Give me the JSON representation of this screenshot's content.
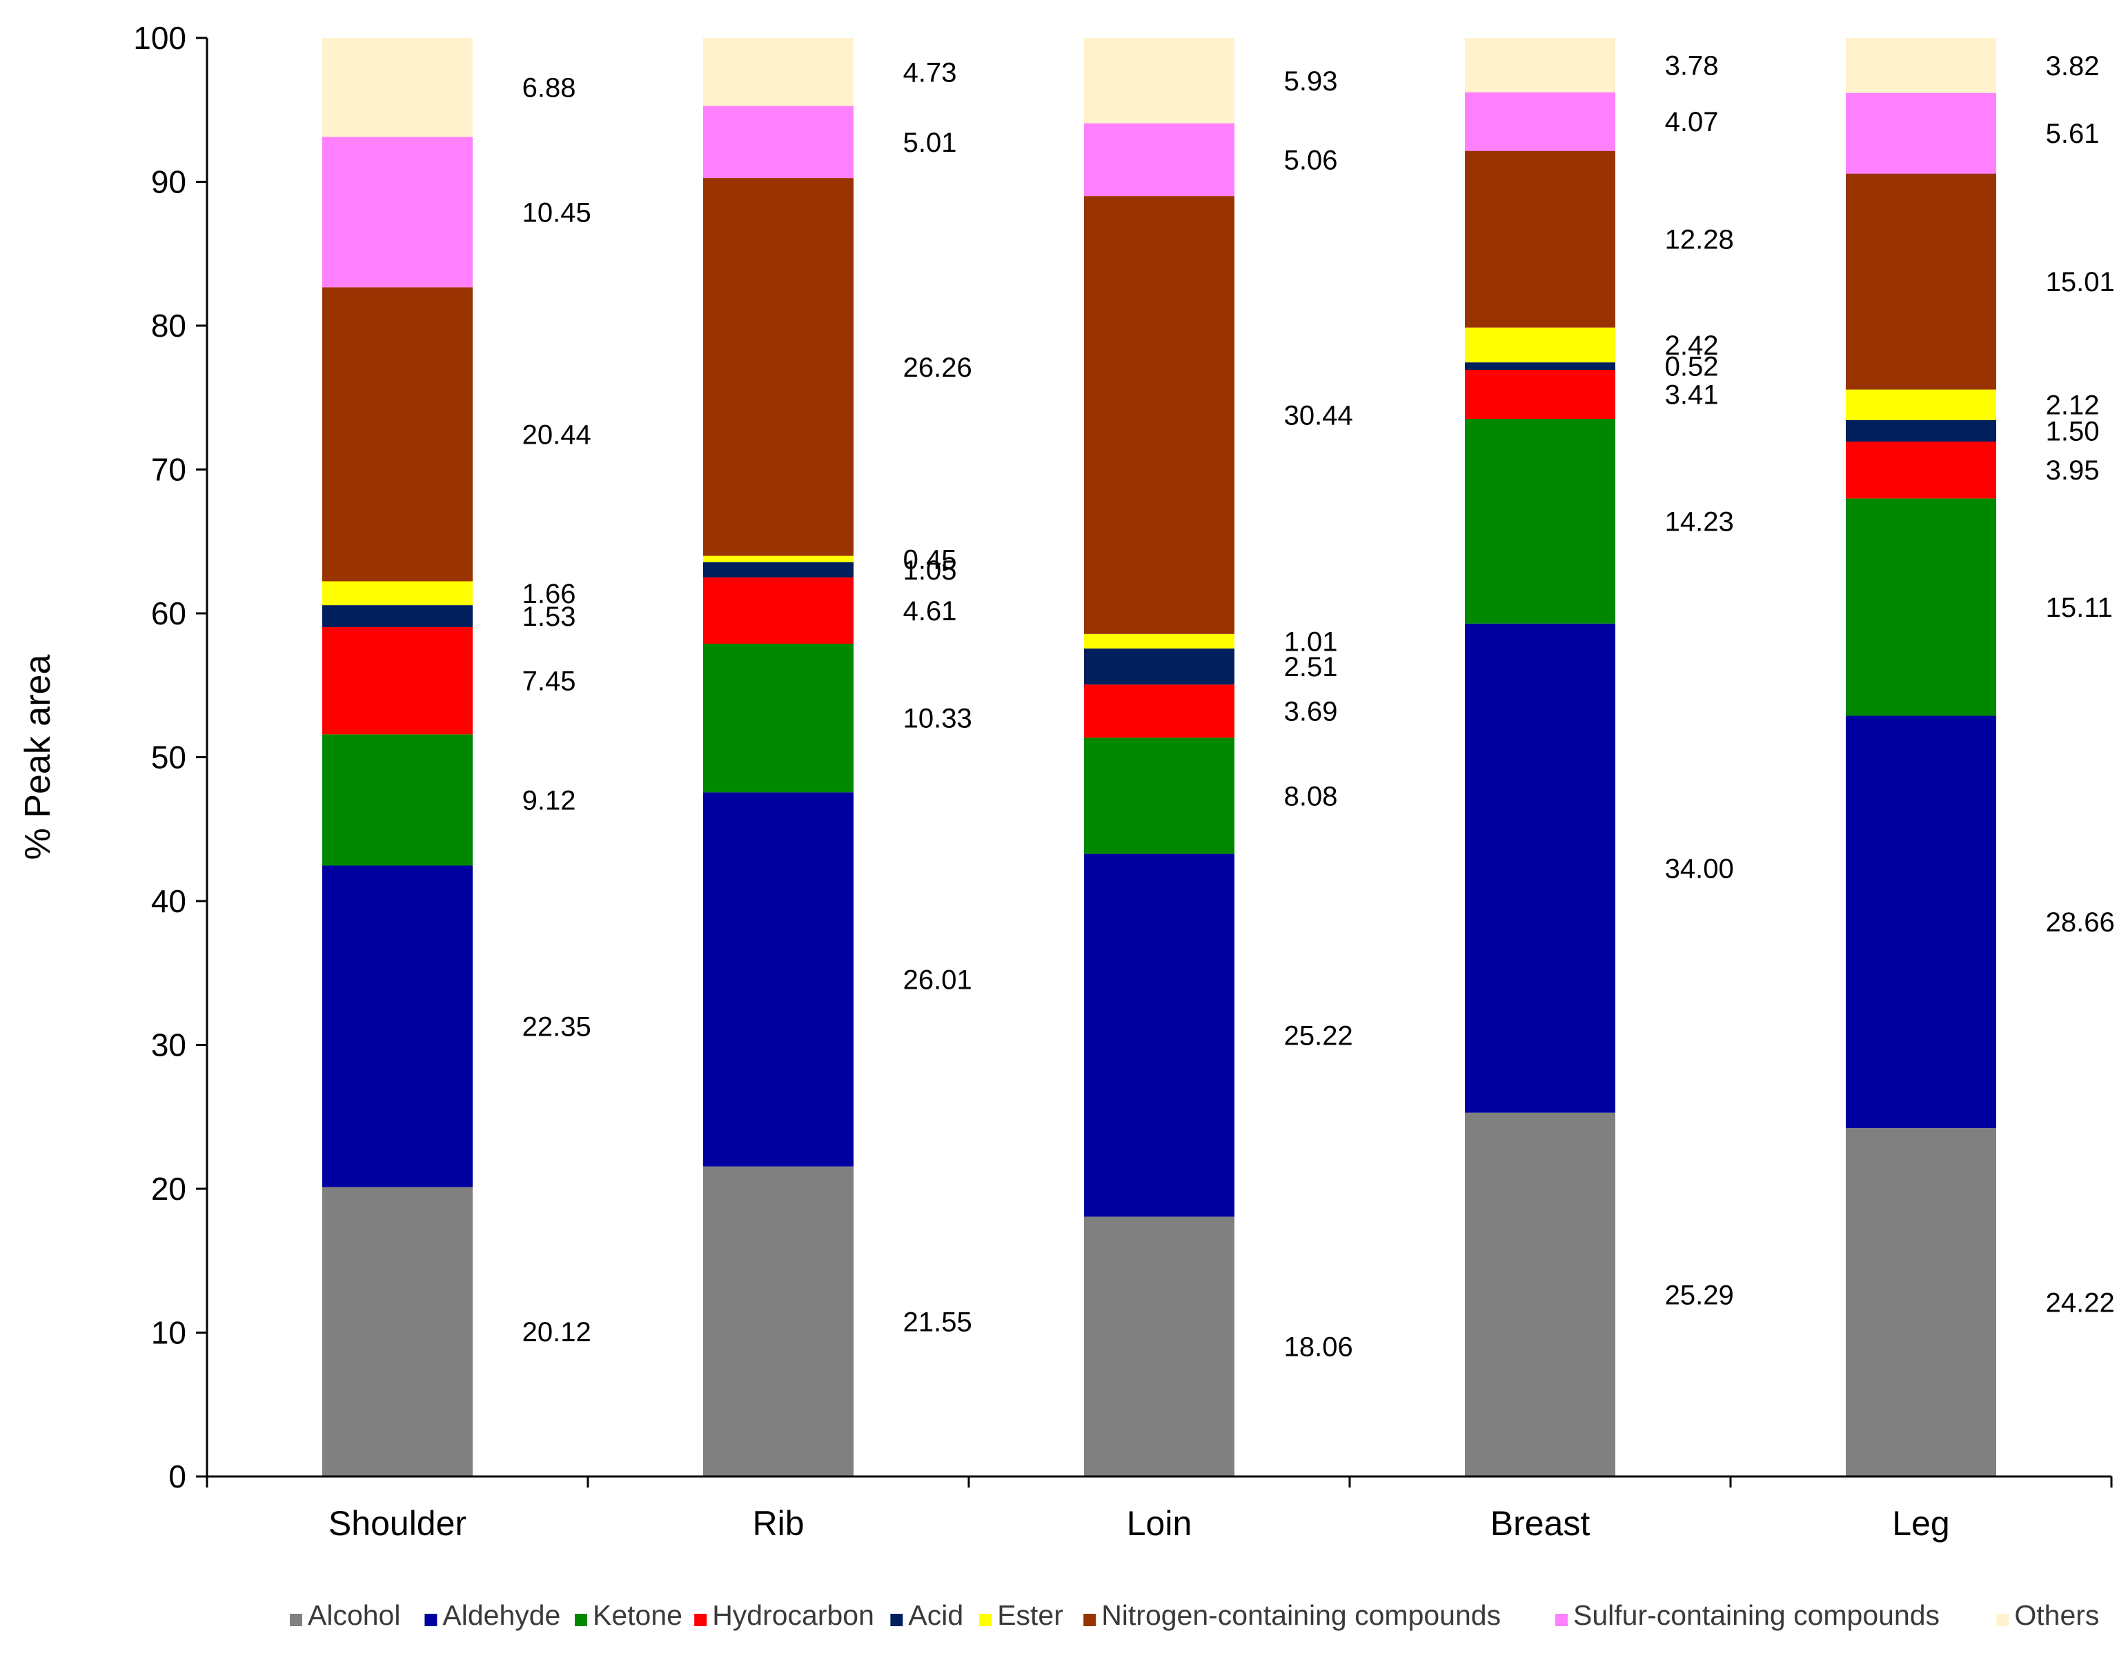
{
  "chart_data": {
    "type": "bar",
    "stacked": true,
    "title": "",
    "xlabel": "",
    "ylabel": "% Peak area",
    "ylim": [
      0,
      100
    ],
    "yticks": [
      0,
      10,
      20,
      30,
      40,
      50,
      60,
      70,
      80,
      90,
      100
    ],
    "grid": false,
    "legend_position": "bottom",
    "categories": [
      "Shoulder",
      "Rib",
      "Loin",
      "Breast",
      "Leg"
    ],
    "series": [
      {
        "name": "Alcohol",
        "color": "#808080",
        "values": [
          20.12,
          21.55,
          18.06,
          25.29,
          24.22
        ],
        "labels": [
          "20.12",
          "21.55",
          "18.06",
          "25.29",
          "24.22"
        ]
      },
      {
        "name": "Aldehyde",
        "color": "#0000A0",
        "values": [
          22.35,
          26.01,
          25.22,
          34.0,
          28.66
        ],
        "labels": [
          "22.35",
          "26.01",
          "25.22",
          "34.00",
          "28.66"
        ]
      },
      {
        "name": "Ketone",
        "color": "#008800",
        "values": [
          9.12,
          10.33,
          8.08,
          14.23,
          15.11
        ],
        "labels": [
          "9.12",
          "10.33",
          "8.08",
          "14.23",
          "15.11"
        ]
      },
      {
        "name": "Hydrocarbon",
        "color": "#FF0000",
        "values": [
          7.45,
          4.61,
          3.69,
          3.41,
          3.95
        ],
        "labels": [
          "7.45",
          "4.61",
          "3.69",
          "3.41",
          "3.95"
        ]
      },
      {
        "name": "Acid",
        "color": "#001F5C",
        "values": [
          1.53,
          1.05,
          2.51,
          0.52,
          1.5
        ],
        "labels": [
          "1.53",
          "1.05",
          "2.51",
          "0.52",
          "1.50"
        ]
      },
      {
        "name": "Ester",
        "color": "#FFFF00",
        "values": [
          1.66,
          0.45,
          1.01,
          2.42,
          2.12
        ],
        "labels": [
          "1.66",
          "0.45",
          "1.01",
          "2.42",
          "2.12"
        ]
      },
      {
        "name": "Nitrogen-containing compounds",
        "color": "#993300",
        "values": [
          20.44,
          26.26,
          30.44,
          12.28,
          15.01
        ],
        "labels": [
          "20.44",
          "26.26",
          "30.44",
          "12.28",
          "15.01"
        ]
      },
      {
        "name": "Sulfur-containing compounds",
        "color": "#FF80FF",
        "values": [
          10.45,
          5.01,
          5.06,
          4.07,
          5.61
        ],
        "labels": [
          "10.45",
          "5.01",
          "5.06",
          "4.07",
          "5.61"
        ]
      },
      {
        "name": "Others",
        "color": "#FFF2CC",
        "values": [
          6.88,
          4.73,
          5.93,
          3.78,
          3.82
        ],
        "labels": [
          "6.88",
          "4.73",
          "5.93",
          "3.78",
          "3.82"
        ]
      }
    ]
  }
}
